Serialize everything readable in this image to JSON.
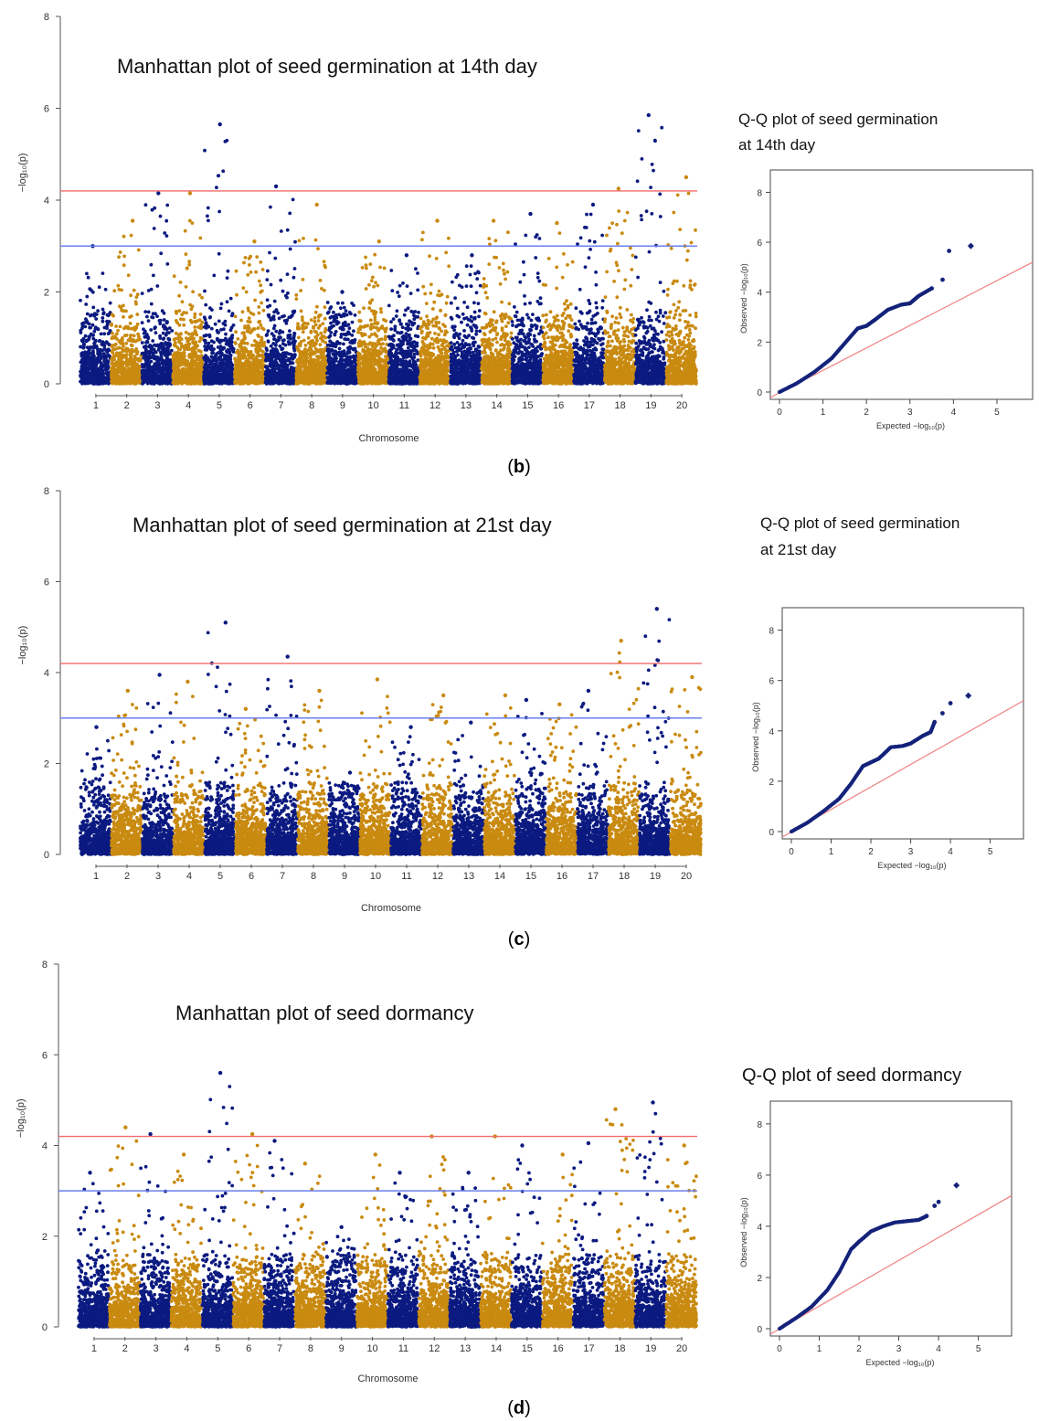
{
  "colors": {
    "dot_primary": "#0b1a80",
    "dot_secondary": "#c98a10",
    "suggestive_line": "#6a7ff0",
    "genomewide_line": "#f06a6a",
    "qq_points": "#14237a",
    "qq_reference": "#f08080"
  },
  "panels": [
    {
      "label": {
        "open": "(",
        "letter": "b",
        "close": ")"
      },
      "manhattan": {
        "title": "Manhattan plot of seed germination at 14th day",
        "xlabel": "Chromosome",
        "ylabel": "−log₁₀(p)"
      },
      "qq": {
        "title_lines": [
          "Q-Q plot of seed germination",
          "at 14th day"
        ],
        "xlabel": "Expected −log₁₀(p)",
        "ylabel": "Observed −log₁₀(p)"
      }
    },
    {
      "label": {
        "open": "(",
        "letter": "c",
        "close": ")"
      },
      "manhattan": {
        "title": "Manhattan plot of seed germination at 21st day",
        "xlabel": "Chromosome",
        "ylabel": "−log₁₀(p)"
      },
      "qq": {
        "title_lines": [
          "Q-Q plot of seed germination",
          "at 21st day"
        ],
        "xlabel": "Expected −log₁₀(p)",
        "ylabel": "Observed −log₁₀(p)"
      }
    },
    {
      "label": {
        "open": "(",
        "letter": "d",
        "close": ")"
      },
      "manhattan": {
        "title": "Manhattan plot of seed dormancy",
        "xlabel": "Chromosome",
        "ylabel": "−log₁₀(p)"
      },
      "qq": {
        "title_lines": [
          "Q-Q plot of seed dormancy"
        ],
        "xlabel": "Expected −log₁₀(p)",
        "ylabel": "Observed −log₁₀(p)"
      }
    }
  ],
  "chart_data": [
    {
      "type": "scatter",
      "subtype": "manhattan",
      "panel": "b",
      "title": "Manhattan plot of seed germination at 14th day",
      "xlabel": "Chromosome",
      "ylabel": "−log₁₀(p)",
      "ylim": [
        0,
        8
      ],
      "yticks": [
        0,
        2,
        4,
        6,
        8
      ],
      "categories": [
        "1",
        "2",
        "3",
        "4",
        "5",
        "6",
        "7",
        "8",
        "9",
        "10",
        "11",
        "12",
        "13",
        "14",
        "15",
        "16",
        "17",
        "18",
        "19",
        "20"
      ],
      "thresholds": [
        {
          "name": "genome-wide",
          "value": 4.2,
          "color": "red"
        },
        {
          "name": "suggestive",
          "value": 3.0,
          "color": "blue"
        }
      ],
      "peak_by_chromosome": [
        3.0,
        3.55,
        4.15,
        4.15,
        5.65,
        3.1,
        4.3,
        3.9,
        2.0,
        3.1,
        2.8,
        3.55,
        2.8,
        3.55,
        3.7,
        3.5,
        3.9,
        4.25,
        5.85,
        4.5
      ],
      "grid": false,
      "legend": "none"
    },
    {
      "type": "scatter",
      "subtype": "qq",
      "panel": "b",
      "title": "Q-Q plot of seed germination at 14th day",
      "xlabel": "Expected −log₁₀(p)",
      "ylabel": "Observed −log₁₀(p)",
      "xlim": [
        0,
        5.2
      ],
      "ylim": [
        0,
        8
      ],
      "xticks": [
        0,
        1,
        2,
        3,
        4,
        5
      ],
      "yticks": [
        0,
        2,
        4,
        6,
        8
      ],
      "points": [
        [
          0,
          0
        ],
        [
          0.4,
          0.35
        ],
        [
          0.8,
          0.8
        ],
        [
          1.2,
          1.35
        ],
        [
          1.5,
          1.95
        ],
        [
          1.8,
          2.55
        ],
        [
          2.0,
          2.65
        ],
        [
          2.2,
          2.9
        ],
        [
          2.5,
          3.3
        ],
        [
          2.8,
          3.5
        ],
        [
          3.0,
          3.55
        ],
        [
          3.2,
          3.85
        ],
        [
          3.5,
          4.15
        ],
        [
          3.75,
          4.5
        ],
        [
          3.9,
          5.65
        ],
        [
          4.4,
          5.85
        ]
      ],
      "reference_line": [
        [
          0,
          0
        ],
        [
          5.2,
          5.2
        ]
      ]
    },
    {
      "type": "scatter",
      "subtype": "manhattan",
      "panel": "c",
      "title": "Manhattan plot of seed germination at 21st day",
      "xlabel": "Chromosome",
      "ylabel": "−log₁₀(p)",
      "ylim": [
        0,
        8
      ],
      "yticks": [
        0,
        2,
        4,
        6,
        8
      ],
      "categories": [
        "1",
        "2",
        "3",
        "4",
        "5",
        "6",
        "7",
        "8",
        "9",
        "10",
        "11",
        "12",
        "13",
        "14",
        "15",
        "16",
        "17",
        "18",
        "19",
        "20"
      ],
      "thresholds": [
        {
          "name": "genome-wide",
          "value": 4.2,
          "color": "red"
        },
        {
          "name": "suggestive",
          "value": 3.0,
          "color": "blue"
        }
      ],
      "peak_by_chromosome": [
        2.8,
        3.6,
        3.95,
        3.8,
        5.1,
        3.2,
        4.35,
        3.6,
        1.8,
        3.85,
        2.8,
        3.5,
        2.9,
        3.5,
        3.4,
        3.3,
        3.6,
        4.7,
        5.4,
        3.9
      ],
      "grid": false,
      "legend": "none"
    },
    {
      "type": "scatter",
      "subtype": "qq",
      "panel": "c",
      "title": "Q-Q plot of seed germination at 21st day",
      "xlabel": "Expected −log₁₀(p)",
      "ylabel": "Observed −log₁₀(p)",
      "xlim": [
        0,
        5.2
      ],
      "ylim": [
        0,
        8
      ],
      "xticks": [
        0,
        1,
        2,
        3,
        4,
        5
      ],
      "yticks": [
        0,
        2,
        4,
        6,
        8
      ],
      "points": [
        [
          0,
          0
        ],
        [
          0.4,
          0.35
        ],
        [
          0.8,
          0.8
        ],
        [
          1.2,
          1.3
        ],
        [
          1.5,
          1.9
        ],
        [
          1.8,
          2.6
        ],
        [
          2.0,
          2.75
        ],
        [
          2.2,
          2.9
        ],
        [
          2.5,
          3.35
        ],
        [
          2.8,
          3.4
        ],
        [
          3.0,
          3.5
        ],
        [
          3.3,
          3.8
        ],
        [
          3.5,
          3.95
        ],
        [
          3.6,
          4.35
        ],
        [
          3.8,
          4.7
        ],
        [
          4.0,
          5.1
        ],
        [
          4.45,
          5.4
        ]
      ],
      "reference_line": [
        [
          0,
          0
        ],
        [
          5.2,
          5.2
        ]
      ]
    },
    {
      "type": "scatter",
      "subtype": "manhattan",
      "panel": "d",
      "title": "Manhattan plot of seed dormancy",
      "xlabel": "Chromosome",
      "ylabel": "−log₁₀(p)",
      "ylim": [
        0,
        8
      ],
      "yticks": [
        0,
        2,
        4,
        6,
        8
      ],
      "categories": [
        "1",
        "2",
        "3",
        "4",
        "5",
        "6",
        "7",
        "8",
        "9",
        "10",
        "11",
        "12",
        "13",
        "14",
        "15",
        "16",
        "17",
        "18",
        "19",
        "20"
      ],
      "thresholds": [
        {
          "name": "genome-wide",
          "value": 4.2,
          "color": "red"
        },
        {
          "name": "suggestive",
          "value": 3.0,
          "color": "blue"
        }
      ],
      "peak_by_chromosome": [
        3.4,
        4.4,
        4.25,
        3.8,
        5.6,
        4.25,
        4.1,
        3.6,
        2.2,
        3.8,
        3.4,
        4.2,
        3.4,
        4.2,
        4.0,
        3.8,
        4.05,
        4.8,
        4.95,
        4.0
      ],
      "grid": false,
      "legend": "none"
    },
    {
      "type": "scatter",
      "subtype": "qq",
      "panel": "d",
      "title": "Q-Q plot of seed dormancy",
      "xlabel": "Expected −log₁₀(p)",
      "ylabel": "Observed −log₁₀(p)",
      "xlim": [
        0,
        5.2
      ],
      "ylim": [
        0,
        8
      ],
      "xticks": [
        0,
        1,
        2,
        3,
        4,
        5
      ],
      "yticks": [
        0,
        2,
        4,
        6,
        8
      ],
      "points": [
        [
          0,
          0
        ],
        [
          0.4,
          0.4
        ],
        [
          0.8,
          0.85
        ],
        [
          1.2,
          1.5
        ],
        [
          1.5,
          2.2
        ],
        [
          1.8,
          3.1
        ],
        [
          2.0,
          3.4
        ],
        [
          2.3,
          3.8
        ],
        [
          2.6,
          4.0
        ],
        [
          2.9,
          4.15
        ],
        [
          3.2,
          4.2
        ],
        [
          3.5,
          4.25
        ],
        [
          3.7,
          4.4
        ],
        [
          3.9,
          4.8
        ],
        [
          4.0,
          4.95
        ],
        [
          4.45,
          5.6
        ]
      ],
      "reference_line": [
        [
          0,
          0
        ],
        [
          5.2,
          5.2
        ]
      ]
    }
  ]
}
